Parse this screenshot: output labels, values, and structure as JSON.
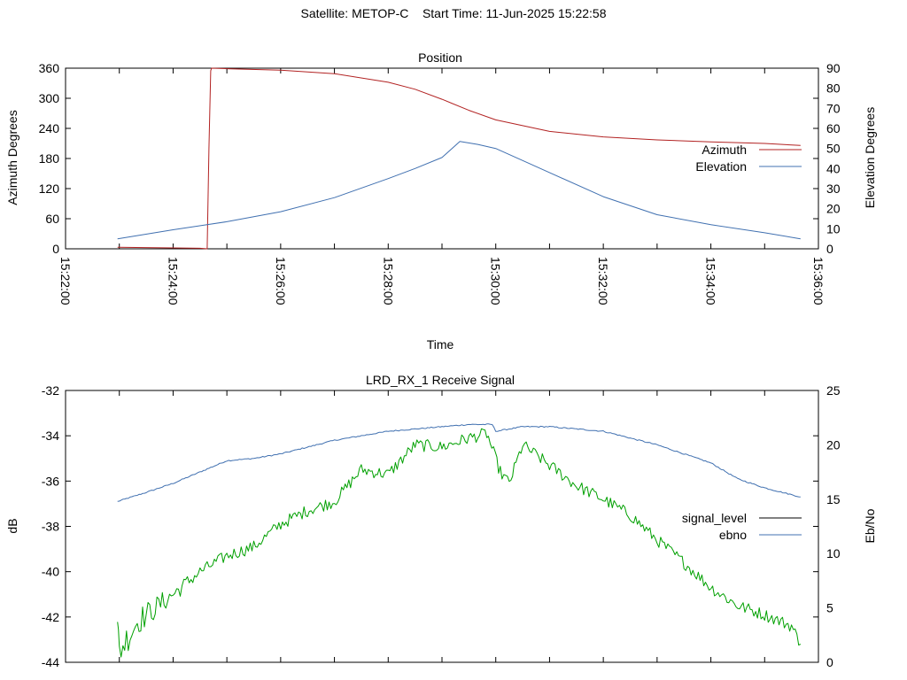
{
  "figure_title": "Satellite: METOP-C    Start Time: 11-Jun-2025 15:22:58",
  "chart_data": [
    {
      "type": "line",
      "title": "Position",
      "xlabel": "Time",
      "ylabel": "Azimuth Degrees",
      "y2label": "Elevation Degrees",
      "xlim": [
        "15:22:00",
        "15:36:00"
      ],
      "ylim": [
        0,
        360
      ],
      "y2lim": [
        0,
        90
      ],
      "xticklabels": [
        "15:22:00",
        "15:24:00",
        "15:26:00",
        "15:28:00",
        "15:30:00",
        "15:32:00",
        "15:34:00",
        "15:36:00"
      ],
      "yticks": [
        0,
        60,
        120,
        180,
        240,
        300,
        360
      ],
      "y2ticks": [
        0,
        10,
        20,
        30,
        40,
        50,
        60,
        70,
        80,
        90
      ],
      "legend_position": "right",
      "grid": false,
      "series": [
        {
          "name": "Azimuth",
          "axis": "left",
          "color": "#b22222",
          "x": [
            "15:22:58",
            "15:24:30",
            "15:24:38",
            "15:24:40",
            "15:24:42",
            "15:24:43",
            "15:25:00",
            "15:26:00",
            "15:27:00",
            "15:28:00",
            "15:28:30",
            "15:29:00",
            "15:29:30",
            "15:30:00",
            "15:31:00",
            "15:32:00",
            "15:33:00",
            "15:34:00",
            "15:35:00",
            "15:35:40"
          ],
          "values": [
            3,
            1,
            0,
            200,
            355,
            360,
            359,
            356,
            349,
            332,
            318,
            298,
            276,
            257,
            234,
            223,
            217,
            213,
            210,
            206
          ]
        },
        {
          "name": "Elevation",
          "axis": "right",
          "color": "#4070b0",
          "x": [
            "15:22:58",
            "15:24:00",
            "15:25:00",
            "15:26:00",
            "15:27:00",
            "15:28:00",
            "15:28:30",
            "15:29:00",
            "15:29:20",
            "15:29:40",
            "15:30:00",
            "15:30:30",
            "15:31:00",
            "15:32:00",
            "15:33:00",
            "15:34:00",
            "15:35:00",
            "15:35:40"
          ],
          "values": [
            5,
            9.5,
            13.5,
            18.5,
            25.5,
            35,
            40,
            45.5,
            53.5,
            52,
            50,
            44,
            38,
            26,
            17,
            12,
            8,
            5
          ]
        }
      ]
    },
    {
      "type": "line",
      "title": "LRD_RX_1 Receive Signal",
      "xlabel": "",
      "ylabel": "dB",
      "y2label": "Eb/No",
      "ylim": [
        -44,
        -32
      ],
      "y2lim": [
        0,
        25
      ],
      "yticks": [
        -44,
        -42,
        -40,
        -38,
        -36,
        -34,
        -32
      ],
      "y2ticks": [
        0,
        5,
        10,
        15,
        20,
        25
      ],
      "xlim": [
        "15:22:00",
        "15:36:00"
      ],
      "legend_position": "right",
      "grid": false,
      "series": [
        {
          "name": "signal_level",
          "axis": "left",
          "color": "#000000",
          "x": [],
          "values": []
        },
        {
          "name": "ebno",
          "axis": "left",
          "color": "#4070b0",
          "x": [
            "15:22:58",
            "15:23:30",
            "15:24:00",
            "15:24:30",
            "15:25:00",
            "15:25:30",
            "15:26:00",
            "15:26:30",
            "15:27:00",
            "15:27:30",
            "15:28:00",
            "15:28:30",
            "15:29:00",
            "15:29:30",
            "15:29:56",
            "15:30:00",
            "15:30:30",
            "15:31:00",
            "15:31:30",
            "15:32:00",
            "15:32:30",
            "15:33:00",
            "15:33:30",
            "15:34:00",
            "15:34:30",
            "15:35:00",
            "15:35:40"
          ],
          "values": [
            -36.9,
            -36.5,
            -36.1,
            -35.6,
            -35.1,
            -35.0,
            -34.8,
            -34.5,
            -34.2,
            -34.0,
            -33.8,
            -33.7,
            -33.6,
            -33.5,
            -33.5,
            -33.8,
            -33.6,
            -33.6,
            -33.7,
            -33.8,
            -34.1,
            -34.4,
            -34.8,
            -35.2,
            -35.9,
            -36.3,
            -36.7
          ]
        },
        {
          "name": "",
          "axis": "left",
          "color": "#00a000",
          "x": [
            "15:22:58",
            "15:23:00",
            "15:23:20",
            "15:23:40",
            "15:24:00",
            "15:24:30",
            "15:25:00",
            "15:25:30",
            "15:26:00",
            "15:26:30",
            "15:27:00",
            "15:27:30",
            "15:28:00",
            "15:28:30",
            "15:29:00",
            "15:29:30",
            "15:29:50",
            "15:30:05",
            "15:30:15",
            "15:30:30",
            "15:31:00",
            "15:31:30",
            "15:32:00",
            "15:32:30",
            "15:33:00",
            "15:33:30",
            "15:34:00",
            "15:34:30",
            "15:35:00",
            "15:35:30",
            "15:35:40"
          ],
          "values": [
            -42.5,
            -43.5,
            -42.2,
            -41.6,
            -41.0,
            -40.0,
            -39.3,
            -38.9,
            -37.9,
            -37.3,
            -36.9,
            -35.5,
            -35.7,
            -34.4,
            -34.5,
            -34.1,
            -33.9,
            -35.6,
            -36.1,
            -34.4,
            -35.3,
            -36.2,
            -36.8,
            -37.5,
            -38.6,
            -39.6,
            -40.7,
            -41.5,
            -41.9,
            -42.4,
            -43.2
          ]
        }
      ]
    }
  ]
}
